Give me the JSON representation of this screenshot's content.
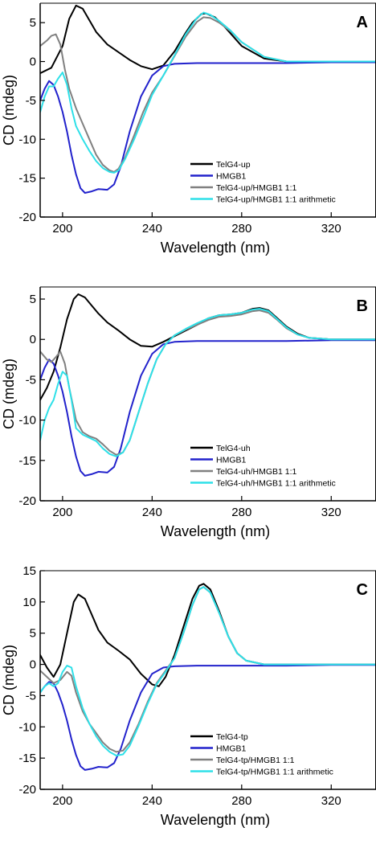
{
  "figure": {
    "background": "#ffffff"
  },
  "chart_data": [
    {
      "type": "line",
      "panel_label": "A",
      "xlabel": "Wavelength (nm)",
      "ylabel": "CD (mdeg)",
      "xlim": [
        190,
        340
      ],
      "ylim": [
        -20,
        7.5
      ],
      "xticks": [
        200,
        240,
        280,
        320
      ],
      "yticks": [
        5,
        0,
        -5,
        -10,
        -15,
        -20
      ],
      "grid": false,
      "legend_position": "bottom-right",
      "series": [
        {
          "name": "TelG4-up",
          "color": "#000000",
          "x": [
            190,
            195,
            200,
            203,
            206,
            209,
            212,
            215,
            220,
            225,
            230,
            235,
            240,
            245,
            250,
            255,
            258,
            262,
            264,
            268,
            272,
            280,
            290,
            300,
            310,
            320,
            330,
            340
          ],
          "y": [
            -1.5,
            -0.8,
            2,
            5.5,
            7.2,
            6.8,
            5.3,
            3.8,
            2.2,
            1.2,
            0.2,
            -0.6,
            -1.0,
            -0.5,
            1.3,
            3.7,
            5.0,
            6.1,
            6.2,
            5.7,
            4.6,
            2.0,
            0.4,
            0,
            0,
            0,
            0,
            0
          ]
        },
        {
          "name": "HMGB1",
          "color": "#2222cc",
          "x": [
            190,
            192,
            194,
            196,
            198,
            200,
            202,
            204,
            206,
            208,
            210,
            213,
            216,
            220,
            223,
            226,
            230,
            235,
            240,
            245,
            250,
            260,
            280,
            300,
            320,
            340
          ],
          "y": [
            -5,
            -3.5,
            -2.5,
            -3,
            -4.5,
            -6.5,
            -9,
            -12,
            -14.5,
            -16.3,
            -16.9,
            -16.7,
            -16.4,
            -16.5,
            -15.8,
            -13.5,
            -9,
            -4.5,
            -1.8,
            -0.6,
            -0.3,
            -0.2,
            -0.2,
            -0.2,
            -0.1,
            -0.1
          ]
        },
        {
          "name": "TelG4-up/HMGB1 1:1",
          "color": "#808080",
          "x": [
            190,
            193,
            195,
            197,
            199,
            201,
            203,
            206,
            209,
            212,
            215,
            218,
            221,
            223,
            225,
            228,
            232,
            236,
            240,
            245,
            250,
            255,
            260,
            263,
            266,
            270,
            275,
            280,
            290,
            300,
            310,
            320,
            330,
            340
          ],
          "y": [
            2,
            2.7,
            3.3,
            3.5,
            2.2,
            -1,
            -3.5,
            -6,
            -8,
            -10,
            -12,
            -13.3,
            -14,
            -14.2,
            -13.8,
            -12.3,
            -9.5,
            -6.5,
            -4,
            -1.8,
            0.7,
            3.2,
            5.1,
            5.7,
            5.6,
            5,
            3.9,
            2.5,
            0.6,
            0,
            0,
            0,
            0,
            0
          ]
        },
        {
          "name": "TelG4-up/HMGB1 1:1 arithmetic",
          "color": "#2ee0e8",
          "x": [
            190,
            192,
            194,
            196,
            198,
            200,
            202,
            204,
            206,
            209,
            212,
            215,
            218,
            221,
            223,
            225,
            228,
            232,
            236,
            240,
            245,
            250,
            255,
            260,
            263,
            266,
            270,
            275,
            280,
            290,
            300,
            310,
            320,
            330,
            340
          ],
          "y": [
            -6.5,
            -4.5,
            -3.2,
            -3.2,
            -2.2,
            -1.4,
            -3,
            -6,
            -8.3,
            -10,
            -11.5,
            -12.8,
            -13.7,
            -14.2,
            -14.3,
            -14,
            -12.5,
            -10,
            -7.2,
            -4.3,
            -1.8,
            0.8,
            3.5,
            5.6,
            6.3,
            6,
            5.2,
            4,
            2.5,
            0.6,
            0,
            0,
            0,
            0,
            0
          ]
        }
      ]
    },
    {
      "type": "line",
      "panel_label": "B",
      "xlabel": "Wavelength (nm)",
      "ylabel": "CD (mdeg)",
      "xlim": [
        190,
        340
      ],
      "ylim": [
        -20,
        6.5
      ],
      "xticks": [
        200,
        240,
        280,
        320
      ],
      "yticks": [
        5,
        0,
        -5,
        -10,
        -15,
        -20
      ],
      "grid": false,
      "legend_position": "bottom-right",
      "series": [
        {
          "name": "TelG4-uh",
          "color": "#000000",
          "x": [
            190,
            193,
            196,
            199,
            202,
            205,
            207,
            210,
            213,
            216,
            220,
            225,
            230,
            235,
            240,
            245,
            250,
            255,
            260,
            265,
            270,
            275,
            280,
            285,
            288,
            292,
            296,
            300,
            305,
            310,
            320,
            330,
            340
          ],
          "y": [
            -7.5,
            -6,
            -4,
            -1,
            2.5,
            5,
            5.6,
            5.2,
            4.2,
            3.2,
            2.1,
            1.1,
            0,
            -0.8,
            -0.9,
            -0.3,
            0.4,
            1.1,
            1.8,
            2.6,
            3,
            3.1,
            3.3,
            3.8,
            3.9,
            3.6,
            2.6,
            1.6,
            0.7,
            0.2,
            0,
            0,
            0
          ]
        },
        {
          "name": "HMGB1",
          "color": "#2222cc",
          "x": [
            190,
            192,
            194,
            196,
            198,
            200,
            202,
            204,
            206,
            208,
            210,
            213,
            216,
            220,
            223,
            226,
            230,
            235,
            240,
            245,
            250,
            260,
            280,
            300,
            320,
            340
          ],
          "y": [
            -5,
            -3.5,
            -2.5,
            -3,
            -4.5,
            -6.5,
            -9,
            -12,
            -14.5,
            -16.3,
            -16.9,
            -16.7,
            -16.4,
            -16.5,
            -15.8,
            -13.5,
            -9,
            -4.5,
            -1.8,
            -0.6,
            -0.3,
            -0.2,
            -0.2,
            -0.2,
            -0.1,
            -0.1
          ]
        },
        {
          "name": "TelG4-uh/HMGB1 1:1",
          "color": "#808080",
          "x": [
            190,
            193,
            195,
            197,
            199,
            201,
            203,
            206,
            209,
            212,
            215,
            218,
            221,
            224,
            227,
            230,
            234,
            238,
            242,
            246,
            250,
            255,
            260,
            265,
            270,
            275,
            280,
            285,
            288,
            292,
            296,
            300,
            305,
            310,
            320,
            330,
            340
          ],
          "y": [
            -1.5,
            -2.5,
            -2.8,
            -2.2,
            -1.5,
            -3,
            -6,
            -10,
            -11.5,
            -12,
            -12.3,
            -13,
            -13.8,
            -14.3,
            -14,
            -12.5,
            -9,
            -5.5,
            -2.5,
            -0.6,
            0.5,
            1.2,
            1.8,
            2.4,
            2.8,
            2.9,
            3.1,
            3.5,
            3.6,
            3.3,
            2.4,
            1.4,
            0.6,
            0.2,
            0,
            0,
            0
          ]
        },
        {
          "name": "TelG4-uh/HMGB1 1:1 arithmetic",
          "color": "#2ee0e8",
          "x": [
            190,
            192,
            194,
            196,
            198,
            200,
            202,
            204,
            206,
            209,
            212,
            215,
            218,
            221,
            224,
            227,
            230,
            234,
            238,
            242,
            246,
            250,
            255,
            260,
            265,
            270,
            275,
            280,
            285,
            288,
            292,
            296,
            300,
            305,
            310,
            320,
            330,
            340
          ],
          "y": [
            -12.5,
            -10,
            -8.5,
            -7.5,
            -5.5,
            -4,
            -4.5,
            -7.5,
            -11,
            -11.8,
            -12.2,
            -12.6,
            -13.5,
            -14.2,
            -14.5,
            -14,
            -12.5,
            -9,
            -5.5,
            -2.5,
            -0.6,
            0.5,
            1.3,
            2,
            2.6,
            3,
            3.1,
            3.3,
            3.7,
            3.8,
            3.5,
            2.5,
            1.5,
            0.6,
            0.2,
            0,
            0,
            0
          ]
        }
      ]
    },
    {
      "type": "line",
      "panel_label": "C",
      "xlabel": "Wavelength (nm)",
      "ylabel": "CD (mdeg)",
      "xlim": [
        190,
        340
      ],
      "ylim": [
        -20,
        15
      ],
      "xticks": [
        200,
        240,
        280,
        320
      ],
      "yticks": [
        15,
        10,
        5,
        0,
        -5,
        -10,
        -15,
        -20
      ],
      "grid": false,
      "legend_position": "bottom-right",
      "series": [
        {
          "name": "TelG4-tp",
          "color": "#000000",
          "x": [
            190,
            193,
            196,
            199,
            202,
            205,
            207,
            210,
            213,
            216,
            220,
            225,
            230,
            235,
            240,
            243,
            246,
            250,
            254,
            258,
            261,
            263,
            266,
            270,
            274,
            278,
            282,
            290,
            300,
            310,
            320,
            330,
            340
          ],
          "y": [
            1.5,
            -0.5,
            -2,
            0,
            5,
            10,
            11.2,
            10.5,
            8,
            5.5,
            3.5,
            2.2,
            0.8,
            -1.5,
            -3.2,
            -3.5,
            -2,
            1.5,
            6,
            10.5,
            12.6,
            12.9,
            12,
            8.5,
            4.5,
            1.8,
            0.6,
            0,
            0,
            0,
            0,
            0,
            0
          ]
        },
        {
          "name": "HMGB1",
          "color": "#2222cc",
          "x": [
            190,
            192,
            194,
            196,
            198,
            200,
            202,
            204,
            206,
            208,
            210,
            213,
            216,
            220,
            223,
            226,
            230,
            235,
            240,
            245,
            250,
            260,
            280,
            300,
            320,
            340
          ],
          "y": [
            -4.5,
            -3.5,
            -2.8,
            -3,
            -4.5,
            -6.5,
            -9,
            -12,
            -14.5,
            -16.3,
            -16.9,
            -16.7,
            -16.4,
            -16.5,
            -15.8,
            -13.5,
            -9,
            -4.5,
            -1.5,
            -0.5,
            -0.3,
            -0.2,
            -0.2,
            -0.2,
            -0.1,
            -0.1
          ]
        },
        {
          "name": "TelG4-tp/HMGB1 1:1",
          "color": "#808080",
          "x": [
            190,
            193,
            196,
            199,
            202,
            204,
            206,
            209,
            212,
            215,
            218,
            221,
            224,
            227,
            230,
            234,
            238,
            242,
            246,
            250,
            254,
            258,
            261,
            263,
            266,
            270,
            274,
            278,
            282,
            290,
            300,
            310,
            320,
            330,
            340
          ],
          "y": [
            -1,
            -2,
            -3,
            -2.5,
            -1.2,
            -1.8,
            -4.5,
            -7.5,
            -9.5,
            -11,
            -12.5,
            -13.5,
            -14,
            -13.8,
            -12.5,
            -9.5,
            -6,
            -3,
            -1,
            1,
            5,
            9.5,
            12,
            12.4,
            11.5,
            8.2,
            4.5,
            1.8,
            0.6,
            0,
            0,
            0,
            0,
            0,
            0
          ]
        },
        {
          "name": "TelG4-tp/HMGB1 1:1 arithmetic",
          "color": "#2ee0e8",
          "x": [
            190,
            192,
            194,
            196,
            198,
            200,
            202,
            204,
            206,
            209,
            212,
            215,
            218,
            221,
            224,
            227,
            230,
            234,
            238,
            242,
            246,
            250,
            254,
            258,
            261,
            263,
            266,
            270,
            274,
            278,
            282,
            290,
            300,
            310,
            320,
            330,
            340
          ],
          "y": [
            -4.5,
            -3.5,
            -3,
            -3.5,
            -3,
            -1.2,
            -0.2,
            -0.5,
            -3.5,
            -7,
            -9.5,
            -11.5,
            -13,
            -14,
            -14.6,
            -14.4,
            -13,
            -9.8,
            -6.3,
            -3.2,
            -1.2,
            1,
            5,
            9.5,
            12,
            12.4,
            11.5,
            8.2,
            4.5,
            1.8,
            0.6,
            0,
            0,
            0,
            0,
            0,
            0
          ]
        }
      ]
    }
  ]
}
